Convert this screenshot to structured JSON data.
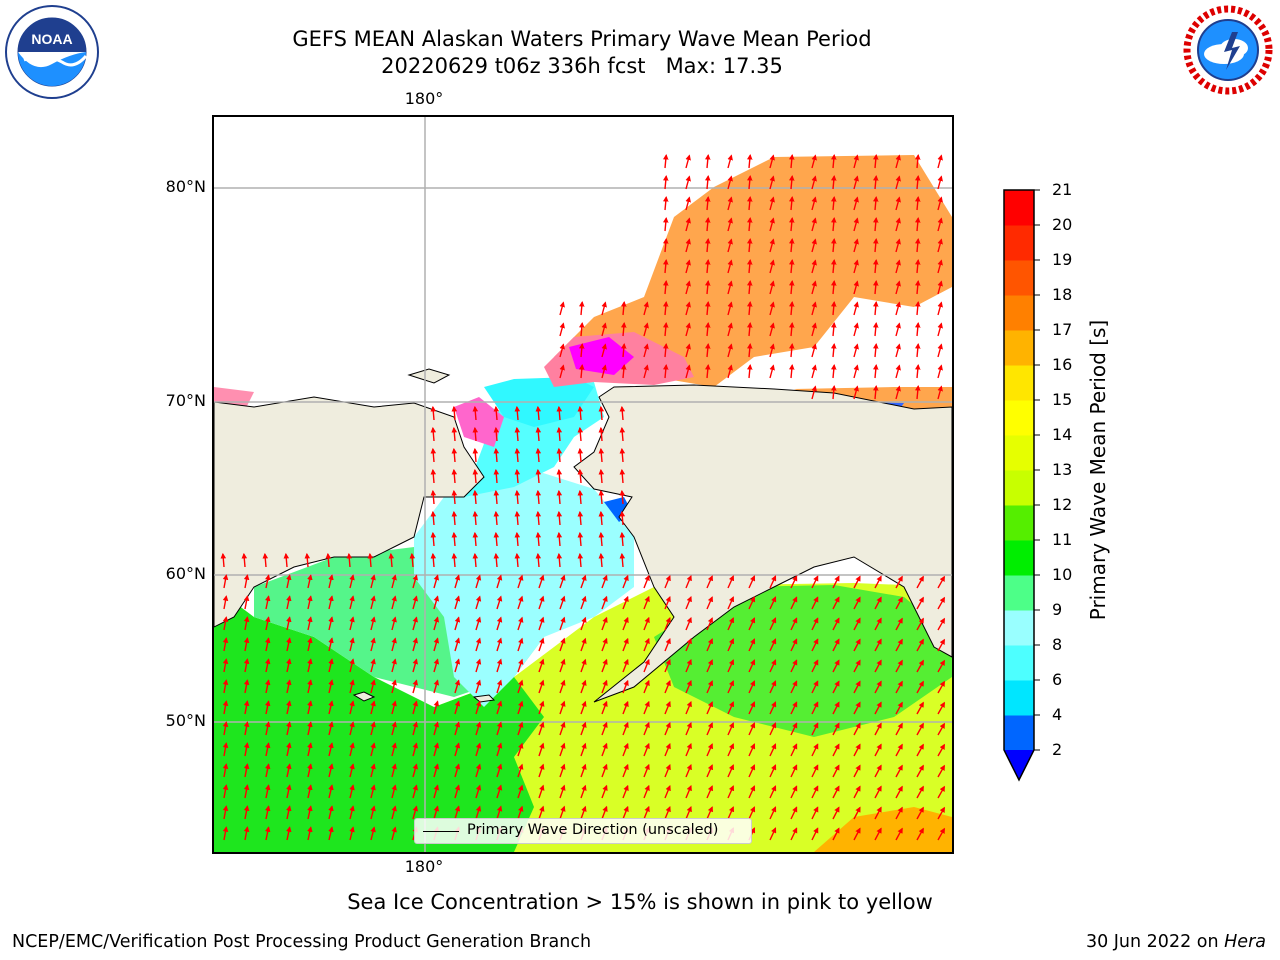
{
  "header": {
    "title": "GEFS MEAN Alaskan Waters Primary Wave Mean Period",
    "subtitle": "20220629 t06z 336h fcst   Max: 17.35"
  },
  "logos": {
    "left": "noaa-logo",
    "right": "national-weather-service-logo",
    "left_text": "NOAA",
    "right_ring_text": "NATIONAL WEATHER SERVICE"
  },
  "map": {
    "lon_label_top": "180°",
    "lon_label_bottom": "180°",
    "lat_labels": [
      "80°N",
      "70°N",
      "60°N",
      "50°N"
    ],
    "legend_label": "Primary Wave Direction (unscaled)",
    "colors": {
      "land": "#efedde",
      "ice": "#ff00ff",
      "arrow": "#ff0000",
      "gridline": "#b0b0b0"
    }
  },
  "colorbar": {
    "label": "Primary Wave Mean Period [s]",
    "ticks": [
      "2",
      "4",
      "6",
      "8",
      "9",
      "10",
      "11",
      "12",
      "13",
      "14",
      "15",
      "16",
      "17",
      "18",
      "19",
      "20",
      "21"
    ],
    "colors": [
      "#0066ff",
      "#00e6ff",
      "#4dffff",
      "#99ffff",
      "#4dff88",
      "#00ee00",
      "#55ee00",
      "#c8ff00",
      "#e6ff00",
      "#ffff00",
      "#ffe600",
      "#ffb300",
      "#ff8000",
      "#ff5500",
      "#ff2a00",
      "#ff0000"
    ],
    "under_color": "#0000ff"
  },
  "caption": "Sea Ice Concentration > 15% is shown in pink to yellow",
  "footer": {
    "left": "NCEP/EMC/Verification Post Processing Product Generation Branch",
    "right_prefix": "30 Jun 2022 on ",
    "right_machine": "Hera"
  }
}
